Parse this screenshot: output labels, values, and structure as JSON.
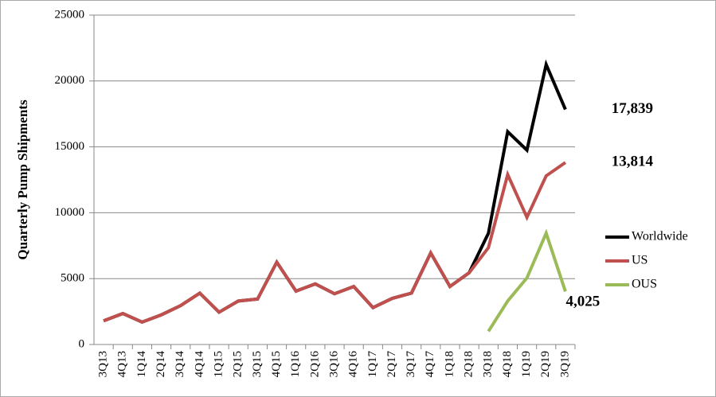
{
  "chart_data": {
    "type": "line",
    "y_label": "Quarterly Pump Shipments",
    "categories": [
      "3Q13",
      "4Q13",
      "1Q14",
      "2Q14",
      "3Q14",
      "4Q14",
      "1Q15",
      "2Q15",
      "3Q15",
      "4Q15",
      "1Q16",
      "2Q16",
      "3Q16",
      "4Q16",
      "1Q17",
      "2Q17",
      "3Q17",
      "4Q17",
      "1Q18",
      "2Q18",
      "3Q18",
      "4Q18",
      "1Q19",
      "2Q19",
      "3Q19"
    ],
    "series": [
      {
        "name": "Worldwide",
        "color": "#000000",
        "values": [
          1800,
          2350,
          1700,
          2250,
          2950,
          3900,
          2450,
          3300,
          3450,
          6250,
          4050,
          4600,
          3850,
          4400,
          2800,
          3500,
          3900,
          6950,
          4400,
          5450,
          8450,
          16150,
          14750,
          21250,
          17839
        ],
        "value_labels": [
          null,
          null,
          null,
          null,
          null,
          null,
          null,
          null,
          null,
          null,
          null,
          null,
          null,
          null,
          null,
          null,
          null,
          null,
          null,
          null,
          null,
          null,
          null,
          null,
          "17,839"
        ]
      },
      {
        "name": "US",
        "color": "#c0504d",
        "values": [
          1800,
          2350,
          1700,
          2250,
          2950,
          3900,
          2450,
          3300,
          3450,
          6250,
          4050,
          4600,
          3850,
          4400,
          2800,
          3500,
          3900,
          6950,
          4400,
          5450,
          7350,
          12900,
          9650,
          12800,
          13814
        ],
        "value_labels": [
          null,
          null,
          null,
          null,
          null,
          null,
          null,
          null,
          null,
          null,
          null,
          null,
          null,
          null,
          null,
          null,
          null,
          null,
          null,
          null,
          null,
          null,
          null,
          null,
          "13,814"
        ]
      },
      {
        "name": "OUS",
        "color": "#9bbb59",
        "values": [
          null,
          null,
          null,
          null,
          null,
          null,
          null,
          null,
          null,
          null,
          null,
          null,
          null,
          null,
          null,
          null,
          null,
          null,
          null,
          null,
          1000,
          3300,
          5050,
          8450,
          4025
        ],
        "value_labels": [
          null,
          null,
          null,
          null,
          null,
          null,
          null,
          null,
          null,
          null,
          null,
          null,
          null,
          null,
          null,
          null,
          null,
          null,
          null,
          null,
          null,
          null,
          null,
          null,
          "4,025"
        ]
      }
    ],
    "ylim": [
      0,
      25000
    ],
    "yticks": [
      0,
      5000,
      10000,
      15000,
      20000,
      25000
    ],
    "grid": true,
    "legend": "right"
  }
}
